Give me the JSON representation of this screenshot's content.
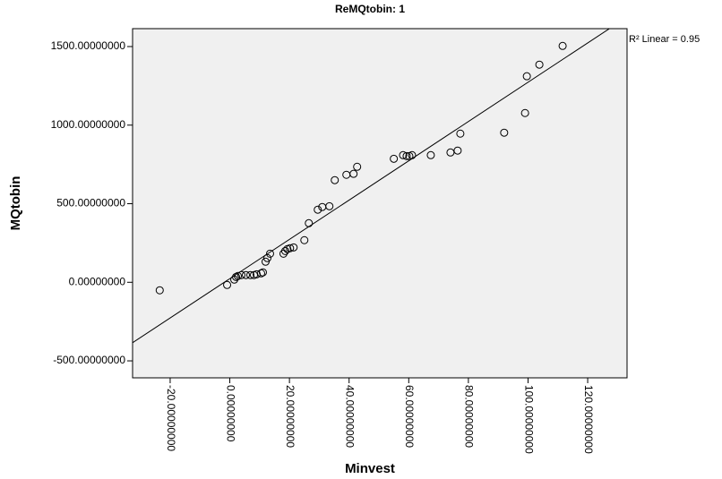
{
  "chart_data": {
    "type": "scatter",
    "title": "ReMQtobin: 1",
    "x_label": "Minvest",
    "y_label": "MQtobin",
    "annotation": "R² Linear = 0.95",
    "color": "#000000",
    "background": "#f0f0f0",
    "x": [
      -23.5,
      -0.9,
      1.5,
      2.1,
      2.7,
      3.9,
      5.4,
      6.9,
      8.1,
      9.0,
      10.5,
      11.1,
      12.0,
      12.6,
      13.5,
      18.0,
      18.6,
      19.3,
      20.2,
      21.4,
      25.0,
      26.5,
      29.5,
      31.0,
      33.4,
      35.2,
      39.1,
      41.5,
      42.7,
      55.0,
      58.1,
      59.3,
      60.2,
      61.1,
      67.4,
      74.0,
      76.4,
      77.3,
      92.0,
      99.0,
      99.6,
      103.8,
      111.6
    ],
    "values": [
      -51,
      -17,
      17,
      34,
      40,
      46,
      46,
      46,
      46,
      51,
      57,
      63,
      131,
      154,
      182,
      182,
      199,
      211,
      217,
      222,
      268,
      376,
      462,
      479,
      484,
      650,
      684,
      690,
      735,
      786,
      809,
      803,
      803,
      809,
      809,
      826,
      838,
      946,
      952,
      1077,
      1311,
      1385,
      1504
    ],
    "fit_line": {
      "x": [
        -32.6,
        133.2
      ],
      "y": [
        -384.5,
        1688
      ]
    },
    "xlim": [
      -32.6,
      133.2
    ],
    "ylim": [
      -608,
      1614
    ],
    "xticks": [
      {
        "value": -20,
        "label": "-20.00000000"
      },
      {
        "value": 0,
        "label": "0.00000000"
      },
      {
        "value": 20,
        "label": "20.00000000"
      },
      {
        "value": 40,
        "label": "40.00000000"
      },
      {
        "value": 60,
        "label": "60.00000000"
      },
      {
        "value": 80,
        "label": "80.00000000"
      },
      {
        "value": 100,
        "label": "100.00000000"
      },
      {
        "value": 120,
        "label": "120.00000000"
      }
    ],
    "yticks": [
      {
        "value": -500,
        "label": "-500.00000000"
      },
      {
        "value": 0,
        "label": "0.00000000"
      },
      {
        "value": 500,
        "label": "500.00000000"
      },
      {
        "value": 1000,
        "label": "1000.00000000"
      },
      {
        "value": 1500,
        "label": "1500.00000000"
      }
    ]
  }
}
